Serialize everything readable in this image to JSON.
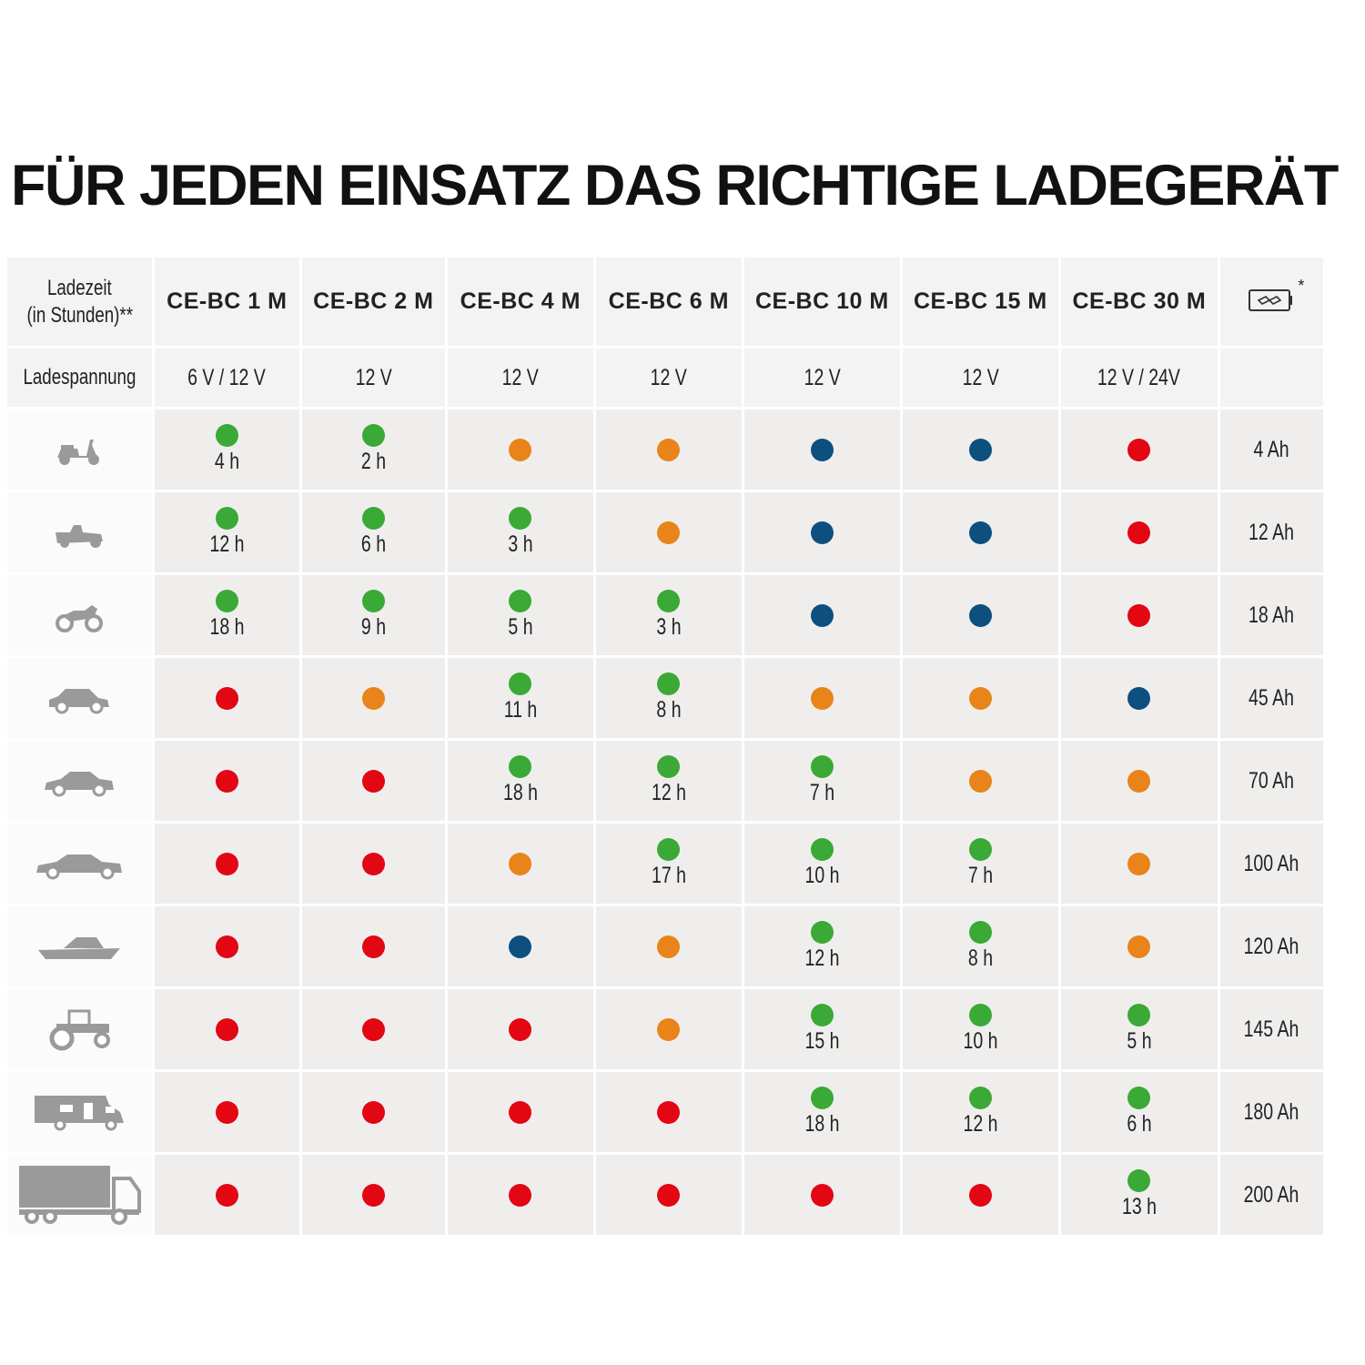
{
  "title": "FÜR JEDEN EINSATZ DAS RICHTIGE LADEGERÄT",
  "colors": {
    "green": "#3aa935",
    "orange": "#e8841a",
    "blue": "#0d4f7f",
    "red": "#e30613"
  },
  "header": {
    "corner_line1": "Ladezeit",
    "corner_line2": "(in Stunden)**",
    "models": [
      "CE-BC 1 M",
      "CE-BC 2 M",
      "CE-BC 4 M",
      "CE-BC 6 M",
      "CE-BC 10 M",
      "CE-BC 15 M",
      "CE-BC 30 M"
    ],
    "battery_icon": "battery-charge-icon",
    "battery_asterisk": "*"
  },
  "voltage": {
    "label": "Ladespannung",
    "values": [
      "6 V / 12 V",
      "12 V",
      "12 V",
      "12 V",
      "12 V",
      "12 V",
      "12 V / 24V"
    ]
  },
  "rows": [
    {
      "icon": "scooter-icon",
      "capacity": "4 Ah",
      "cells": [
        {
          "c": "green",
          "t": "4 h"
        },
        {
          "c": "green",
          "t": "2 h"
        },
        {
          "c": "orange"
        },
        {
          "c": "orange"
        },
        {
          "c": "blue"
        },
        {
          "c": "blue"
        },
        {
          "c": "red"
        }
      ]
    },
    {
      "icon": "lawn-mower-icon",
      "capacity": "12 Ah",
      "cells": [
        {
          "c": "green",
          "t": "12 h"
        },
        {
          "c": "green",
          "t": "6 h"
        },
        {
          "c": "green",
          "t": "3 h"
        },
        {
          "c": "orange"
        },
        {
          "c": "blue"
        },
        {
          "c": "blue"
        },
        {
          "c": "red"
        }
      ]
    },
    {
      "icon": "motorcycle-icon",
      "capacity": "18 Ah",
      "cells": [
        {
          "c": "green",
          "t": "18 h"
        },
        {
          "c": "green",
          "t": "9 h"
        },
        {
          "c": "green",
          "t": "5 h"
        },
        {
          "c": "green",
          "t": "3 h"
        },
        {
          "c": "blue"
        },
        {
          "c": "blue"
        },
        {
          "c": "red"
        }
      ]
    },
    {
      "icon": "small-car-icon",
      "capacity": "45 Ah",
      "cells": [
        {
          "c": "red"
        },
        {
          "c": "orange"
        },
        {
          "c": "green",
          "t": "11 h"
        },
        {
          "c": "green",
          "t": "8 h"
        },
        {
          "c": "orange"
        },
        {
          "c": "orange"
        },
        {
          "c": "blue"
        }
      ]
    },
    {
      "icon": "car-icon",
      "capacity": "70 Ah",
      "cells": [
        {
          "c": "red"
        },
        {
          "c": "red"
        },
        {
          "c": "green",
          "t": "18 h"
        },
        {
          "c": "green",
          "t": "12 h"
        },
        {
          "c": "green",
          "t": "7 h"
        },
        {
          "c": "orange"
        },
        {
          "c": "orange"
        }
      ]
    },
    {
      "icon": "sedan-icon",
      "capacity": "100 Ah",
      "cells": [
        {
          "c": "red"
        },
        {
          "c": "red"
        },
        {
          "c": "orange"
        },
        {
          "c": "green",
          "t": "17 h"
        },
        {
          "c": "green",
          "t": "10 h"
        },
        {
          "c": "green",
          "t": "7 h"
        },
        {
          "c": "orange"
        }
      ]
    },
    {
      "icon": "boat-icon",
      "capacity": "120 Ah",
      "cells": [
        {
          "c": "red"
        },
        {
          "c": "red"
        },
        {
          "c": "blue"
        },
        {
          "c": "orange"
        },
        {
          "c": "green",
          "t": "12 h"
        },
        {
          "c": "green",
          "t": "8 h"
        },
        {
          "c": "orange"
        }
      ]
    },
    {
      "icon": "tractor-icon",
      "capacity": "145 Ah",
      "cells": [
        {
          "c": "red"
        },
        {
          "c": "red"
        },
        {
          "c": "red"
        },
        {
          "c": "orange"
        },
        {
          "c": "green",
          "t": "15 h"
        },
        {
          "c": "green",
          "t": "10 h"
        },
        {
          "c": "green",
          "t": "5 h"
        }
      ]
    },
    {
      "icon": "camper-icon",
      "capacity": "180 Ah",
      "cells": [
        {
          "c": "red"
        },
        {
          "c": "red"
        },
        {
          "c": "red"
        },
        {
          "c": "red"
        },
        {
          "c": "green",
          "t": "18 h"
        },
        {
          "c": "green",
          "t": "12 h"
        },
        {
          "c": "green",
          "t": "6 h"
        }
      ]
    },
    {
      "icon": "truck-icon",
      "capacity": "200 Ah",
      "cells": [
        {
          "c": "red"
        },
        {
          "c": "red"
        },
        {
          "c": "red"
        },
        {
          "c": "red"
        },
        {
          "c": "red"
        },
        {
          "c": "red"
        },
        {
          "c": "green",
          "t": "13 h"
        }
      ]
    }
  ]
}
